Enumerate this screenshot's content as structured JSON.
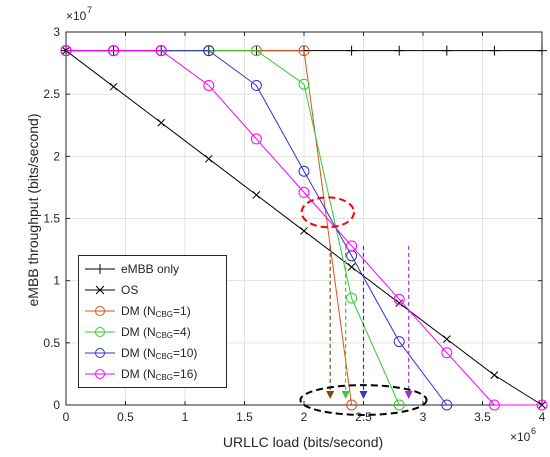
{
  "chart_data": {
    "type": "line",
    "xlabel": "URLLC load (bits/second)",
    "ylabel": "eMBB throughput (bits/second)",
    "x_exponent_label": "×10",
    "x_exponent_power": "6",
    "y_exponent_label": "×10",
    "y_exponent_power": "7",
    "xlim": [
      0,
      4
    ],
    "ylim": [
      0,
      3
    ],
    "xticks": [
      "0",
      "0.5",
      "1",
      "1.5",
      "2",
      "2.5",
      "3",
      "3.5",
      "4"
    ],
    "yticks": [
      "0",
      "0.5",
      "1",
      "1.5",
      "2",
      "2.5",
      "3"
    ],
    "grid": true,
    "legend_position": "bottom-left",
    "series": [
      {
        "name": "eMBB only",
        "color": "#000000",
        "marker": "plus",
        "x": [
          0,
          0.4,
          0.8,
          1.2,
          1.6,
          2.0,
          2.4,
          2.8,
          3.2,
          3.6,
          4.0
        ],
        "y": [
          2.85,
          2.85,
          2.85,
          2.85,
          2.85,
          2.85,
          2.85,
          2.85,
          2.85,
          2.85,
          2.85
        ]
      },
      {
        "name": "OS",
        "color": "#000000",
        "marker": "x",
        "x": [
          0,
          0.4,
          0.8,
          1.2,
          1.6,
          2.0,
          2.4,
          2.8,
          3.2,
          3.6,
          4.0
        ],
        "y": [
          2.85,
          2.56,
          2.27,
          1.98,
          1.69,
          1.4,
          1.11,
          0.82,
          0.53,
          0.24,
          0
        ]
      },
      {
        "name_prefix": "DM (N",
        "name_sub": "CBG",
        "name_suffix": "=1)",
        "color": "#d95319",
        "marker": "circle",
        "x": [
          0,
          0.4,
          0.8,
          1.2,
          1.6,
          2.0,
          2.4
        ],
        "y": [
          2.85,
          2.85,
          2.85,
          2.85,
          2.85,
          2.85,
          0
        ]
      },
      {
        "name_prefix": "DM (N",
        "name_sub": "CBG",
        "name_suffix": "=4)",
        "color": "#33cc33",
        "marker": "circle",
        "x": [
          0,
          0.4,
          0.8,
          1.2,
          1.6,
          2.0,
          2.4,
          2.8
        ],
        "y": [
          2.85,
          2.85,
          2.85,
          2.85,
          2.85,
          2.58,
          0.86,
          0
        ]
      },
      {
        "name_prefix": "DM (N",
        "name_sub": "CBG",
        "name_suffix": "=10)",
        "color": "#3333cc",
        "marker": "circle",
        "x": [
          0,
          0.4,
          0.8,
          1.2,
          1.6,
          2.0,
          2.4,
          2.8,
          3.2
        ],
        "y": [
          2.85,
          2.85,
          2.85,
          2.85,
          2.57,
          1.88,
          1.2,
          0.51,
          0
        ]
      },
      {
        "name_prefix": "DM (N",
        "name_sub": "CBG",
        "name_suffix": "=16)",
        "color": "#ff00ff",
        "marker": "circle",
        "x": [
          0,
          0.4,
          0.8,
          1.2,
          1.6,
          2.0,
          2.4,
          2.8,
          3.2,
          3.6,
          4.0
        ],
        "y": [
          2.85,
          2.85,
          2.85,
          2.57,
          2.14,
          1.71,
          1.28,
          0.85,
          0.42,
          0,
          0
        ]
      }
    ],
    "annotations": {
      "arrows": [
        {
          "color": "#8b4513",
          "x": 2.22
        },
        {
          "color": "#33cc33",
          "x": 2.35
        },
        {
          "color": "#3333cc",
          "x": 2.5
        },
        {
          "color": "#9933cc",
          "x": 2.88
        }
      ],
      "ellipses": [
        {
          "color": "#ff0000",
          "cx": 2.2,
          "cy": 1.55,
          "rx": 0.22,
          "ry": 0.12
        },
        {
          "color": "#000000",
          "cx": 2.5,
          "cy": 0.04,
          "rx": 0.53,
          "ry": 0.12
        }
      ]
    }
  }
}
